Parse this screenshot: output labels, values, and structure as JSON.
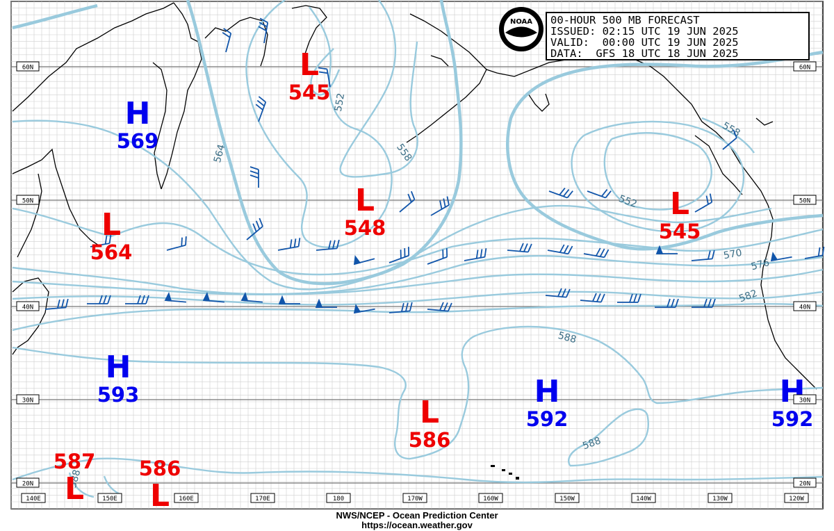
{
  "header": {
    "line1": "00-HOUR 500 MB FORECAST",
    "line2": "ISSUED: 02:15 UTC 19 JUN 2025",
    "line3": "VALID:  00:00 UTC 19 JUN 2025",
    "line4": "DATA:  GFS 18 UTC 18 JUN 2025"
  },
  "logo": {
    "text": "NOAA",
    "icon": "noaa-logo"
  },
  "lat_labels": [
    "60N",
    "50N",
    "40N",
    "30N",
    "20N"
  ],
  "lon_labels": [
    "140E",
    "150E",
    "160E",
    "170E",
    "180",
    "170W",
    "160W",
    "150W",
    "140W",
    "130W",
    "120W"
  ],
  "centers": [
    {
      "type": "H",
      "value": "569"
    },
    {
      "type": "L",
      "value": "545"
    },
    {
      "type": "L",
      "value": "548"
    },
    {
      "type": "L",
      "value": "564"
    },
    {
      "type": "L",
      "value": "545"
    },
    {
      "type": "H",
      "value": "593"
    },
    {
      "type": "H",
      "value": "592"
    },
    {
      "type": "L",
      "value": "586"
    },
    {
      "type": "H",
      "value": "592"
    },
    {
      "type": "L",
      "value": "587"
    },
    {
      "type": "L",
      "value": "586"
    }
  ],
  "contour_labels": [
    "564",
    "552",
    "558",
    "552",
    "558",
    "570",
    "576",
    "582",
    "588",
    "588",
    "588"
  ],
  "colors": {
    "contour": "#99cadd",
    "high": "#0000ee",
    "low": "#ee0000",
    "barb": "#1155aa",
    "coast": "#000000",
    "grid": "#999999"
  },
  "footer": {
    "line1": "NWS/NCEP - Ocean Prediction Center",
    "line2": "https://ocean.weather.gov"
  }
}
